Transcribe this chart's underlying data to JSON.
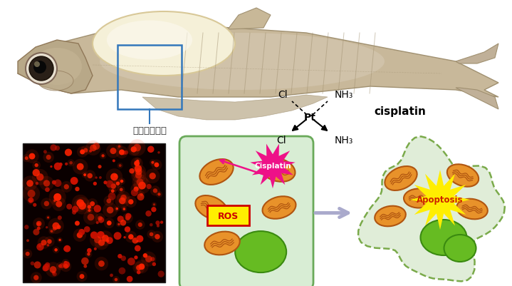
{
  "bg_color": "#ffffff",
  "cisplatin_label": "cisplatin",
  "Pt_label": "Pt",
  "Cl_label": "Cl",
  "NH3_label": "NH₃",
  "cisplatin_text": "Cisplatin",
  "ROS_text": "ROS",
  "apoptosis_text": "Apoptosis",
  "chinese_label": "皮蠙離子細脹",
  "cell_bg": "#d8edd4",
  "cell_border": "#6aaa5a",
  "apoptosis_bg": "#e0edd8",
  "apoptosis_border": "#7aaa4a",
  "mito_outer": "#e8922a",
  "mito_inner": "#b05510",
  "nucleus_color": "#66bb22",
  "cisplatin_burst_color": "#ee1188",
  "apoptosis_burst_color": "#ffee00",
  "ROS_box_bg": "#ffee00",
  "ROS_box_border": "#cc0000",
  "arrow_pink": "#ee1188",
  "arrow_gray": "#aaaacc",
  "connector_color": "#3377bb",
  "highlight_box_color": "#3377bb",
  "fish_body": "#c8b89a",
  "fish_body_edge": "#a09070",
  "fish_yolk": "#f5f0d8",
  "fish_yolk_edge": "#d8c898",
  "fish_head": "#b8a888",
  "fish_head_edge": "#907858"
}
